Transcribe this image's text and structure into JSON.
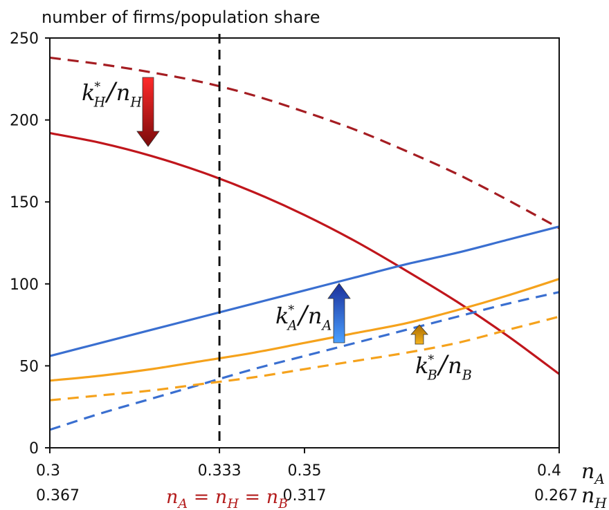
{
  "chart_data": {
    "type": "line",
    "title": "number of firms/population share",
    "ylim": [
      0,
      250
    ],
    "xlim": [
      0.3,
      0.4
    ],
    "y_ticks": [
      0,
      50,
      100,
      150,
      200,
      250
    ],
    "x_ticks": [
      {
        "x": 0.3,
        "top": "0.3",
        "bottom": "0.367"
      },
      {
        "x": 0.3333,
        "top": "0.333",
        "bottom": ""
      },
      {
        "x": 0.35,
        "top": "0.35",
        "bottom": "0.317"
      },
      {
        "x": 0.4,
        "top": "0.4",
        "bottom": "0.267"
      }
    ],
    "x_axis_labels": [
      {
        "var": "n",
        "sub": "A"
      },
      {
        "var": "n",
        "sub": "H"
      }
    ],
    "vertical_line": {
      "x": 0.3333,
      "label": {
        "parts": [
          "n",
          "A",
          " = ",
          "n",
          "H",
          " = ",
          "n",
          "B"
        ]
      }
    },
    "series": [
      {
        "key": "kH_dashed",
        "color": "#a51d22",
        "dashed": true,
        "x": [
          0.3,
          0.31,
          0.32,
          0.33,
          0.34,
          0.35,
          0.36,
          0.37,
          0.38,
          0.39,
          0.4
        ],
        "y": [
          238,
          234,
          229,
          223,
          215,
          205,
          194,
          181,
          167,
          151,
          134
        ]
      },
      {
        "key": "kH_solid",
        "color": "#c0161c",
        "dashed": false,
        "x": [
          0.3,
          0.31,
          0.32,
          0.33,
          0.34,
          0.35,
          0.36,
          0.37,
          0.38,
          0.39,
          0.4
        ],
        "y": [
          192,
          186,
          178,
          168,
          156,
          142,
          126,
          108,
          89,
          68,
          45
        ]
      },
      {
        "key": "kA_solid",
        "color": "#3a6fd0",
        "dashed": false,
        "x": [
          0.3,
          0.31,
          0.32,
          0.33,
          0.34,
          0.35,
          0.36,
          0.37,
          0.38,
          0.39,
          0.4
        ],
        "y": [
          56,
          64,
          72,
          80,
          88,
          96,
          104,
          112,
          119,
          127,
          135
        ]
      },
      {
        "key": "kA_dashed",
        "color": "#3a6fd0",
        "dashed": true,
        "x": [
          0.3,
          0.31,
          0.32,
          0.33,
          0.34,
          0.35,
          0.36,
          0.37,
          0.38,
          0.39,
          0.4
        ],
        "y": [
          11,
          21,
          30,
          39,
          48,
          56,
          64,
          72,
          80,
          88,
          95
        ]
      },
      {
        "key": "kB_solid",
        "color": "#f5a21c",
        "dashed": false,
        "x": [
          0.3,
          0.31,
          0.32,
          0.33,
          0.34,
          0.35,
          0.36,
          0.37,
          0.38,
          0.39,
          0.4
        ],
        "y": [
          41,
          44,
          48,
          53,
          58,
          64,
          70,
          76,
          84,
          93,
          103
        ]
      },
      {
        "key": "kB_dashed",
        "color": "#f5a21c",
        "dashed": true,
        "x": [
          0.3,
          0.31,
          0.32,
          0.33,
          0.34,
          0.35,
          0.36,
          0.37,
          0.38,
          0.39,
          0.4
        ],
        "y": [
          29,
          32,
          35,
          39,
          43,
          48,
          53,
          58,
          64,
          72,
          80
        ]
      }
    ],
    "annotations": [
      {
        "key": "kH_label",
        "parts": [
          "k",
          "*",
          "H",
          "/",
          "n",
          "H"
        ]
      },
      {
        "key": "kA_label",
        "parts": [
          "k",
          "*",
          "A",
          "/",
          "n",
          "A"
        ]
      },
      {
        "key": "kB_label",
        "parts": [
          "k",
          "*",
          "B",
          "/",
          "n",
          "B"
        ]
      }
    ],
    "arrows": [
      {
        "key": "arrow_H",
        "direction": "down",
        "colors": [
          "#ff2a2a",
          "#7a0a0a"
        ]
      },
      {
        "key": "arrow_A",
        "direction": "up",
        "colors": [
          "#1a2f9a",
          "#4aa0ff"
        ]
      },
      {
        "key": "arrow_B",
        "direction": "up",
        "colors": [
          "#a86a00",
          "#f6b41e"
        ]
      }
    ]
  }
}
